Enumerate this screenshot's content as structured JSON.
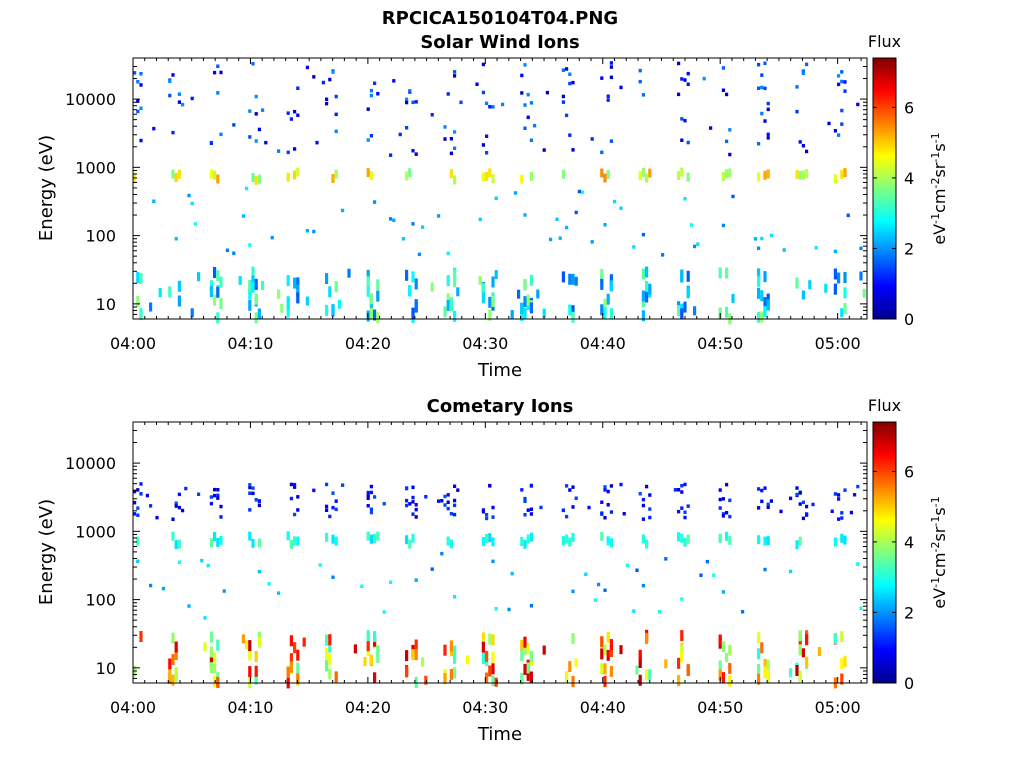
{
  "figure_title": "RPCICA150104T04.PNG",
  "colorbar": {
    "label_top": "Flux",
    "unit_label": "eV-1cm-2sr-1s-1",
    "unit_parts": [
      "eV",
      "-1",
      "cm",
      "-2",
      "sr",
      "-1",
      "s",
      "-1"
    ],
    "ticks": [
      "0",
      "2",
      "4",
      "6"
    ],
    "range": [
      0,
      7.4
    ],
    "colormap": "jet"
  },
  "chart_data": [
    {
      "type": "heatmap",
      "title": "Solar Wind Ions",
      "xlabel": "Time",
      "ylabel": "Energy (eV)",
      "x_ticks": [
        "04:00",
        "04:10",
        "04:20",
        "04:30",
        "04:40",
        "04:50",
        "05:00"
      ],
      "y_ticks": [
        "10",
        "100",
        "1000",
        "10000"
      ],
      "y_scale": "log",
      "ylim": [
        6,
        40000
      ],
      "xlim_minutes": [
        0,
        62.5
      ],
      "bands": [
        {
          "name": "solar-wind-peak",
          "energy_ev": 750,
          "flux_range": [
            3.5,
            5.5
          ]
        },
        {
          "name": "high-energy-sparse",
          "energy_ev": [
            1500,
            35000
          ],
          "flux_range": [
            0.5,
            2
          ]
        },
        {
          "name": "low-energy",
          "energy_ev": [
            6,
            30
          ],
          "flux_range": [
            1.5,
            4
          ]
        }
      ]
    },
    {
      "type": "heatmap",
      "title": "Cometary Ions",
      "xlabel": "Time",
      "ylabel": "Energy (eV)",
      "x_ticks": [
        "04:00",
        "04:10",
        "04:20",
        "04:30",
        "04:40",
        "04:50",
        "05:00"
      ],
      "y_ticks": [
        "10",
        "100",
        "1000",
        "10000"
      ],
      "y_scale": "log",
      "ylim": [
        6,
        40000
      ],
      "xlim_minutes": [
        0,
        62.5
      ],
      "bands": [
        {
          "name": "cometary-low-energy",
          "energy_ev": [
            6,
            30
          ],
          "flux_range": [
            3,
            7
          ]
        },
        {
          "name": "mid-band",
          "energy_ev": 750,
          "flux_range": [
            2.5,
            3.5
          ]
        },
        {
          "name": "high-energy-sparse",
          "energy_ev": [
            1500,
            5000
          ],
          "flux_range": [
            0.5,
            1.5
          ]
        }
      ]
    }
  ]
}
